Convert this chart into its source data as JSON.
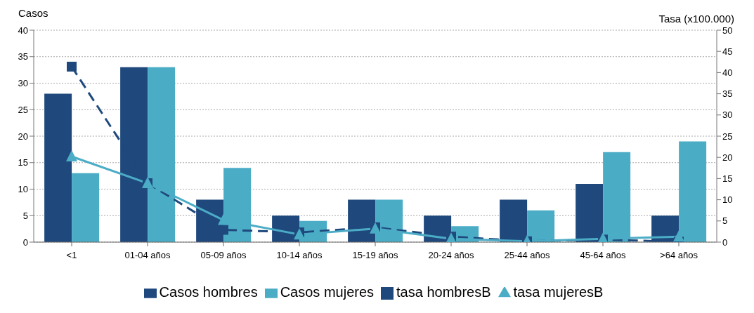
{
  "chart_data": {
    "type": "bar",
    "ylabel": "Casos",
    "y2label": "Tasa (x100.000)",
    "categories": [
      "<1",
      "01-04 años",
      "05-09 años",
      "10-14 años",
      "15-19 años",
      "20-24 años",
      "25-44 años",
      "45-64 años",
      ">64 años"
    ],
    "series": [
      {
        "name": "Casos hombres",
        "color": "#1f497d",
        "values": [
          28,
          33,
          8,
          5,
          8,
          5,
          8,
          11,
          5
        ]
      },
      {
        "name": "Casos mujeres",
        "color": "#4bacc6",
        "values": [
          13,
          33,
          14,
          4,
          8,
          3,
          6,
          17,
          19
        ]
      },
      {
        "name": "tasa hombresB",
        "type": "line",
        "axis": "y2",
        "color": "#1f497d",
        "marker": "square",
        "line_style": "dashed",
        "values": [
          41.4,
          13.9,
          2.9,
          2.3,
          3.5,
          1.3,
          0.2,
          0.6,
          0.1
        ]
      },
      {
        "name": "tasa mujeresB",
        "type": "line",
        "axis": "y2",
        "color": "#4bacc6",
        "marker": "triangle",
        "line_style": "solid",
        "values": [
          20.2,
          13.9,
          5.2,
          1.8,
          3.2,
          0.8,
          0.2,
          0.8,
          1.3
        ]
      }
    ],
    "ylim": [
      0,
      40
    ],
    "yticks": [
      0,
      5,
      10,
      15,
      20,
      25,
      30,
      35,
      40
    ],
    "y2lim": [
      0,
      50
    ],
    "y2ticks": [
      0,
      5,
      10,
      15,
      20,
      25,
      30,
      35,
      40,
      45,
      50
    ],
    "grid": "y",
    "legend": "bottom"
  }
}
